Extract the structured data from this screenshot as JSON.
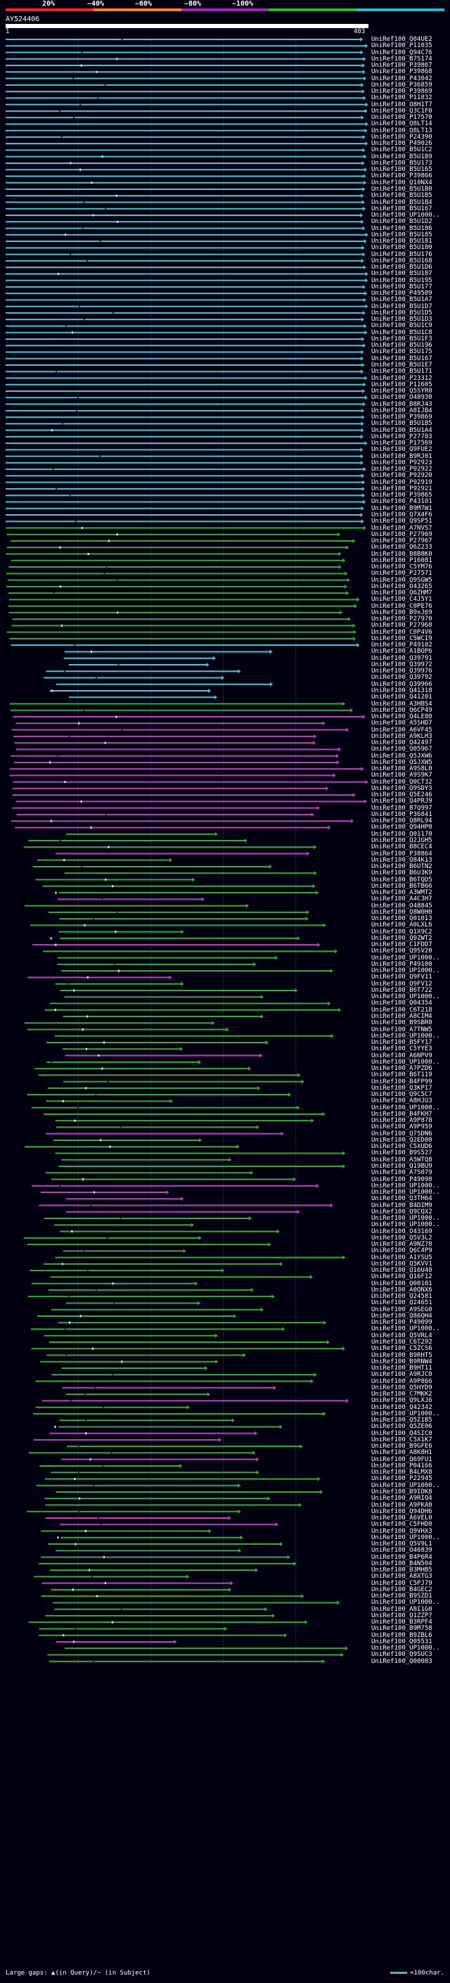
{
  "scale_labels": [
    "20%",
    "~40%",
    "~60%",
    "~80%",
    "~100%"
  ],
  "scale_colors": [
    "#ff2020",
    "#ff8020",
    "#b020c0",
    "#20c020",
    "#20c0d0"
  ],
  "query": {
    "name": "AY524406",
    "start": "1",
    "end": "483"
  },
  "legend": {
    "left": "Large gaps: ▲(in Query)/~ (in Subject)",
    "right": "=100char."
  },
  "colors": {
    "cyan": "#40c8d8",
    "green": "#30b030",
    "magenta": "#c040c0",
    "gap": "#404040"
  },
  "hits": [
    {
      "label": "UniRef100_Q04UE2",
      "color": "cyan"
    },
    {
      "label": "UniRef100_P11035",
      "color": "cyan"
    },
    {
      "label": "UniRef100_Q94C76",
      "color": "cyan"
    },
    {
      "label": "UniRef100_B7S174",
      "color": "cyan"
    },
    {
      "label": "UniRef100_P39867",
      "color": "cyan"
    },
    {
      "label": "UniRef100_P39868",
      "color": "cyan"
    },
    {
      "label": "UniRef100_P43042",
      "color": "cyan"
    },
    {
      "label": "UniRef100_P36859",
      "color": "cyan"
    },
    {
      "label": "UniRef100_P39869",
      "color": "cyan"
    },
    {
      "label": "UniRef100_P11832",
      "color": "cyan"
    },
    {
      "label": "UniRef100_Q8H1T7",
      "color": "cyan"
    },
    {
      "label": "UniRef100_Q3C1F0",
      "color": "cyan"
    },
    {
      "label": "UniRef100_P17570",
      "color": "cyan"
    },
    {
      "label": "UniRef100_Q8LT14",
      "color": "cyan"
    },
    {
      "label": "UniRef100_Q8LT13",
      "color": "cyan"
    },
    {
      "label": "UniRef100_P24390",
      "color": "cyan"
    },
    {
      "label": "UniRef100_P49026",
      "color": "cyan"
    },
    {
      "label": "UniRef100_B5U1C2",
      "color": "cyan"
    },
    {
      "label": "UniRef100_B5U1B9",
      "color": "cyan"
    },
    {
      "label": "UniRef100_B5U173",
      "color": "cyan"
    },
    {
      "label": "UniRef100_B5U165",
      "color": "cyan"
    },
    {
      "label": "UniRef100_P39866",
      "color": "cyan"
    },
    {
      "label": "UniRef100_Q10NX4",
      "color": "cyan"
    },
    {
      "label": "UniRef100_B5U1B0",
      "color": "cyan"
    },
    {
      "label": "UniRef100_B5U1B5",
      "color": "cyan"
    },
    {
      "label": "UniRef100_B5U1B4",
      "color": "cyan"
    },
    {
      "label": "UniRef100_B5U167",
      "color": "cyan"
    },
    {
      "label": "UniRef100_UP1000..",
      "color": "cyan"
    },
    {
      "label": "UniRef100_B5U1D2",
      "color": "cyan"
    },
    {
      "label": "UniRef100_B5U186",
      "color": "cyan"
    },
    {
      "label": "UniRef100_B5U185",
      "color": "cyan"
    },
    {
      "label": "UniRef100_B5U181",
      "color": "cyan"
    },
    {
      "label": "UniRef100_B5U180",
      "color": "cyan"
    },
    {
      "label": "UniRef100_B5U176",
      "color": "cyan"
    },
    {
      "label": "UniRef100_B5U168",
      "color": "cyan"
    },
    {
      "label": "UniRef100_B5U1D6",
      "color": "cyan"
    },
    {
      "label": "UniRef100_B5U187",
      "color": "cyan"
    },
    {
      "label": "UniRef100_B5U195",
      "color": "cyan"
    },
    {
      "label": "UniRef100_B5U177",
      "color": "cyan"
    },
    {
      "label": "UniRef100_P49509",
      "color": "cyan"
    },
    {
      "label": "UniRef100_B5U1A7",
      "color": "cyan"
    },
    {
      "label": "UniRef100_B5U1D7",
      "color": "cyan"
    },
    {
      "label": "UniRef100_B5U1D5",
      "color": "cyan"
    },
    {
      "label": "UniRef100_B5U1D3",
      "color": "cyan"
    },
    {
      "label": "UniRef100_B5U1C9",
      "color": "cyan"
    },
    {
      "label": "UniRef100_B5U1C8",
      "color": "cyan"
    },
    {
      "label": "UniRef100_B5U1F3",
      "color": "cyan"
    },
    {
      "label": "UniRef100_B5U196",
      "color": "cyan"
    },
    {
      "label": "UniRef100_B5U175",
      "color": "cyan"
    },
    {
      "label": "UniRef100_B5U167",
      "color": "cyan"
    },
    {
      "label": "UniRef100_B5U1E7",
      "color": "cyan"
    },
    {
      "label": "UniRef100_B5U171",
      "color": "cyan"
    },
    {
      "label": "UniRef100_P23312",
      "color": "cyan"
    },
    {
      "label": "UniRef100_P11605",
      "color": "cyan"
    },
    {
      "label": "UniRef100_Q5SYR0",
      "color": "cyan"
    },
    {
      "label": "UniRef100_O48930",
      "color": "cyan"
    },
    {
      "label": "UniRef100_B8RJ43",
      "color": "cyan"
    },
    {
      "label": "UniRef100_A8IJB4",
      "color": "cyan"
    },
    {
      "label": "UniRef100_P39869",
      "color": "cyan"
    },
    {
      "label": "UniRef100_B5U1B5",
      "color": "cyan"
    },
    {
      "label": "UniRef100_B5U1A4",
      "color": "cyan"
    },
    {
      "label": "UniRef100_P27783",
      "color": "cyan"
    },
    {
      "label": "UniRef100_P17569",
      "color": "cyan"
    },
    {
      "label": "UniRef100_Q9FUE2",
      "color": "cyan"
    },
    {
      "label": "UniRef100_B9RJ01",
      "color": "cyan"
    },
    {
      "label": "UniRef100_P92923",
      "color": "cyan"
    },
    {
      "label": "UniRef100_P92922",
      "color": "cyan"
    },
    {
      "label": "UniRef100_P92920",
      "color": "cyan"
    },
    {
      "label": "UniRef100_P92919",
      "color": "cyan"
    },
    {
      "label": "UniRef100_P92921",
      "color": "cyan"
    },
    {
      "label": "UniRef100_P39865",
      "color": "cyan"
    },
    {
      "label": "UniRef100_P43101",
      "color": "cyan"
    },
    {
      "label": "UniRef100_B9M7W1",
      "color": "cyan"
    },
    {
      "label": "UniRef100_Q7X4F6",
      "color": "cyan"
    },
    {
      "label": "UniRef100_Q9SP51",
      "color": "cyan"
    },
    {
      "label": "UniRef100_A7NVS7",
      "color": "green"
    },
    {
      "label": "UniRef100_P27969",
      "color": "green"
    },
    {
      "label": "UniRef100_P27967",
      "color": "green"
    },
    {
      "label": "UniRef100_Q6Z233",
      "color": "green"
    },
    {
      "label": "UniRef100_B8B8K0",
      "color": "green"
    },
    {
      "label": "UniRef100_P16081",
      "color": "green"
    },
    {
      "label": "UniRef100_C5YM76",
      "color": "green"
    },
    {
      "label": "UniRef100_P27571",
      "color": "green"
    },
    {
      "label": "UniRef100_Q9SGW5",
      "color": "green"
    },
    {
      "label": "UniRef100_O43265",
      "color": "green"
    },
    {
      "label": "UniRef100_Q6ZHM7",
      "color": "green"
    },
    {
      "label": "UniRef100_C4J5Y1",
      "color": "green"
    },
    {
      "label": "UniRef100_C0PE76",
      "color": "green"
    },
    {
      "label": "UniRef100_B9xJ69",
      "color": "green"
    },
    {
      "label": "UniRef100_P27970",
      "color": "green"
    },
    {
      "label": "UniRef100_P27968",
      "color": "green"
    },
    {
      "label": "UniRef100_C0P4V6",
      "color": "green"
    },
    {
      "label": "UniRef100_C5WCI9",
      "color": "green"
    },
    {
      "label": "UniRef100_P49102",
      "color": "cyan"
    },
    {
      "label": "UniRef100_A1BOP6",
      "color": "cyan"
    },
    {
      "label": "UniRef100_Q39791",
      "color": "cyan"
    },
    {
      "label": "UniRef100_Q39972",
      "color": "cyan"
    },
    {
      "label": "UniRef100_Q39976",
      "color": "cyan"
    },
    {
      "label": "UniRef100_Q39792",
      "color": "cyan"
    },
    {
      "label": "UniRef100_Q39966",
      "color": "cyan"
    },
    {
      "label": "UniRef100_Q41318",
      "color": "cyan"
    },
    {
      "label": "UniRef100_Q41201",
      "color": "cyan"
    },
    {
      "label": "UniRef100_A3HBS4",
      "color": "green"
    },
    {
      "label": "UniRef100_Q6CP49",
      "color": "green"
    },
    {
      "label": "UniRef100_Q4LE80",
      "color": "magenta"
    },
    {
      "label": "UniRef100_A5SHD7",
      "color": "magenta"
    },
    {
      "label": "UniRef100_A6VF45",
      "color": "magenta"
    },
    {
      "label": "UniRef100_A9KLH3",
      "color": "magenta"
    },
    {
      "label": "UniRef100_Q42497",
      "color": "magenta"
    },
    {
      "label": "UniRef100_Q05967",
      "color": "magenta"
    },
    {
      "label": "UniRef100_Q5JXW6",
      "color": "magenta"
    },
    {
      "label": "UniRef100_Q5JXW5",
      "color": "magenta"
    },
    {
      "label": "UniRef100_A9S8L0",
      "color": "magenta"
    },
    {
      "label": "UniRef100_A9S9K7",
      "color": "magenta"
    },
    {
      "label": "UniRef100_Q0CT32",
      "color": "magenta"
    },
    {
      "label": "UniRef100_Q9SDY3",
      "color": "magenta"
    },
    {
      "label": "UniRef100_Q5E246",
      "color": "magenta"
    },
    {
      "label": "UniRef100_Q4PRJ9",
      "color": "magenta"
    },
    {
      "label": "UniRef100_B7Q997",
      "color": "magenta"
    },
    {
      "label": "UniRef100_P36841",
      "color": "magenta"
    },
    {
      "label": "UniRef100_Q8RL94",
      "color": "magenta"
    },
    {
      "label": "UniRef100_Q94HP0",
      "color": "magenta"
    },
    {
      "label": "UniRef100_Q01170",
      "color": "green"
    },
    {
      "label": "UniRef100_Q2JGH5",
      "color": "green"
    },
    {
      "label": "UniRef100_B8CEC4",
      "color": "green"
    },
    {
      "label": "UniRef100_P38864",
      "color": "magenta"
    },
    {
      "label": "UniRef100_Q84K13",
      "color": "green"
    },
    {
      "label": "UniRef100_B6UTN2",
      "color": "green"
    },
    {
      "label": "UniRef100_B6U3K9",
      "color": "green"
    },
    {
      "label": "UniRef100_B6TQD5",
      "color": "green"
    },
    {
      "label": "UniRef100_B6TB66",
      "color": "green"
    },
    {
      "label": "UniRef100_A3WMT2",
      "color": "green"
    },
    {
      "label": "UniRef100_A4C3H7",
      "color": "magenta"
    },
    {
      "label": "UniRef100_O48845",
      "color": "green"
    },
    {
      "label": "UniRef100_Q8W0H0",
      "color": "green"
    },
    {
      "label": "UniRef100_Q01013",
      "color": "green"
    },
    {
      "label": "UniRef100_A0LXL6",
      "color": "green"
    },
    {
      "label": "UniRef100_Q1X9C2",
      "color": "green"
    },
    {
      "label": "UniRef100_Q9ZWT2",
      "color": "green"
    },
    {
      "label": "UniRef100_C1FDD7",
      "color": "magenta"
    },
    {
      "label": "UniRef100_Q9SV20",
      "color": "green"
    },
    {
      "label": "UniRef100_UP1000..",
      "color": "green"
    },
    {
      "label": "UniRef100_P49100",
      "color": "green"
    },
    {
      "label": "UniRef100_UP1000..",
      "color": "green"
    },
    {
      "label": "UniRef100_Q9FV11",
      "color": "magenta"
    },
    {
      "label": "UniRef100_Q9FV12",
      "color": "green"
    },
    {
      "label": "UniRef100_B6T722",
      "color": "green"
    },
    {
      "label": "UniRef100_UP1000..",
      "color": "green"
    },
    {
      "label": "UniRef100_Q04354",
      "color": "green"
    },
    {
      "label": "UniRef100_C6T218",
      "color": "green"
    },
    {
      "label": "UniRef100_A8CIM4",
      "color": "green"
    },
    {
      "label": "UniRef100_B9SBR0",
      "color": "green"
    },
    {
      "label": "UniRef100_A7TNW5",
      "color": "green"
    },
    {
      "label": "UniRef100_UP1000..",
      "color": "green"
    },
    {
      "label": "UniRef100_B5FY17",
      "color": "green"
    },
    {
      "label": "UniRef100_C5YYE3",
      "color": "green"
    },
    {
      "label": "UniRef100_A6NPV9",
      "color": "magenta"
    },
    {
      "label": "UniRef100_UP1000..",
      "color": "green"
    },
    {
      "label": "UniRef100_A7PZD6",
      "color": "green"
    },
    {
      "label": "UniRef100_B6T119",
      "color": "green"
    },
    {
      "label": "UniRef100_B4FP99",
      "color": "green"
    },
    {
      "label": "UniRef100_Q3KP17",
      "color": "green"
    },
    {
      "label": "UniRef100_Q9C5C7",
      "color": "green"
    },
    {
      "label": "UniRef100_A8HJU3",
      "color": "green"
    },
    {
      "label": "UniRef100_UP1000..",
      "color": "green"
    },
    {
      "label": "UniRef100_B4FKH7",
      "color": "green"
    },
    {
      "label": "UniRef100_A9P878",
      "color": "green"
    },
    {
      "label": "UniRef100_A9P959",
      "color": "green"
    },
    {
      "label": "UniRef100_Q75DN6",
      "color": "magenta"
    },
    {
      "label": "UniRef100_Q2ED80",
      "color": "green"
    },
    {
      "label": "UniRef100_C5XUD6",
      "color": "green"
    },
    {
      "label": "UniRef100_B9S527",
      "color": "green"
    },
    {
      "label": "UniRef100_A5WTQ8",
      "color": "green"
    },
    {
      "label": "UniRef100_Q19BU9",
      "color": "green"
    },
    {
      "label": "UniRef100_A7S079",
      "color": "green"
    },
    {
      "label": "UniRef100_P49098",
      "color": "green"
    },
    {
      "label": "UniRef100_UP1000..",
      "color": "magenta"
    },
    {
      "label": "UniRef100_UP1000..",
      "color": "magenta"
    },
    {
      "label": "UniRef100_Q3TH64",
      "color": "magenta"
    },
    {
      "label": "UniRef100_B4DIM9",
      "color": "magenta"
    },
    {
      "label": "UniRef100_Q9CQX2",
      "color": "magenta"
    },
    {
      "label": "UniRef100_UP1000..",
      "color": "green"
    },
    {
      "label": "UniRef100_UP1000..",
      "color": "green"
    },
    {
      "label": "UniRef100_O43169",
      "color": "green"
    },
    {
      "label": "UniRef100_Q5V3L2",
      "color": "green"
    },
    {
      "label": "UniRef100_A9NZ78",
      "color": "green"
    },
    {
      "label": "UniRef100_Q6C4P9",
      "color": "green"
    },
    {
      "label": "UniRef100_A1YSU5",
      "color": "green"
    },
    {
      "label": "UniRef100_Q5KVV1",
      "color": "green"
    },
    {
      "label": "UniRef100_Q16U40",
      "color": "green"
    },
    {
      "label": "UniRef100_Q16F12",
      "color": "green"
    },
    {
      "label": "UniRef100_Q00101",
      "color": "green"
    },
    {
      "label": "UniRef100_A0QNX6",
      "color": "green"
    },
    {
      "label": "UniRef100_Q24581",
      "color": "green"
    },
    {
      "label": "UniRef100_Q24651",
      "color": "green"
    },
    {
      "label": "UniRef100_A9SEG0",
      "color": "green"
    },
    {
      "label": "UniRef100_Q86QH4",
      "color": "green"
    },
    {
      "label": "UniRef100_P49099",
      "color": "green"
    },
    {
      "label": "UniRef100_UP1000..",
      "color": "green"
    },
    {
      "label": "UniRef100_Q5VRL4",
      "color": "green"
    },
    {
      "label": "UniRef100_C6T292",
      "color": "green"
    },
    {
      "label": "UniRef100_C5ZCS6",
      "color": "green"
    },
    {
      "label": "UniRef100_B9RHT5",
      "color": "green"
    },
    {
      "label": "UniRef100_B9RNW4",
      "color": "green"
    },
    {
      "label": "UniRef100_B9HT11",
      "color": "green"
    },
    {
      "label": "UniRef100_A9RJC0",
      "color": "green"
    },
    {
      "label": "UniRef100_A9P866",
      "color": "green"
    },
    {
      "label": "UniRef100_Q5HYD9",
      "color": "magenta"
    },
    {
      "label": "UniRef100_C7MKK2",
      "color": "green"
    },
    {
      "label": "UniRef100_Q9LXJ6",
      "color": "magenta"
    },
    {
      "label": "UniRef100_Q42342",
      "color": "green"
    },
    {
      "label": "UniRef100_UP1000..",
      "color": "green"
    },
    {
      "label": "UniRef100_Q5Z1B5",
      "color": "green"
    },
    {
      "label": "UniRef100_Q5ZE06",
      "color": "green"
    },
    {
      "label": "UniRef100_Q4SIC0",
      "color": "magenta"
    },
    {
      "label": "UniRef100_C5X1K7",
      "color": "magenta"
    },
    {
      "label": "UniRef100_B9GFE6",
      "color": "green"
    },
    {
      "label": "UniRef100_A8K8H1",
      "color": "green"
    },
    {
      "label": "UniRef100_Q69FU1",
      "color": "magenta"
    },
    {
      "label": "UniRef100_P04166",
      "color": "green"
    },
    {
      "label": "UniRef100_B4LMX8",
      "color": "green"
    },
    {
      "label": "UniRef100_P22945",
      "color": "green"
    },
    {
      "label": "UniRef100_UP1000..",
      "color": "green"
    },
    {
      "label": "UniRef100_B9IDK8",
      "color": "green"
    },
    {
      "label": "UniRef100_A9RIQ4",
      "color": "green"
    },
    {
      "label": "UniRef100_A9PKA0",
      "color": "green"
    },
    {
      "label": "UniRef100_Q94DH6",
      "color": "green"
    },
    {
      "label": "UniRef100_A6VEL0",
      "color": "magenta"
    },
    {
      "label": "UniRef100_C5FHD0",
      "color": "magenta"
    },
    {
      "label": "UniRef100_Q9VHX3",
      "color": "green"
    },
    {
      "label": "UniRef100_UP1000..",
      "color": "green"
    },
    {
      "label": "UniRef100_Q5V9L1",
      "color": "green"
    },
    {
      "label": "UniRef100_O46839",
      "color": "green"
    },
    {
      "label": "UniRef100_B4P6R4",
      "color": "green"
    },
    {
      "label": "UniRef100_B4N504",
      "color": "green"
    },
    {
      "label": "UniRef100_B3MHB5",
      "color": "green"
    },
    {
      "label": "UniRef100_A8XTG3",
      "color": "green"
    },
    {
      "label": "UniRef100_C5PJ79",
      "color": "magenta"
    },
    {
      "label": "UniRef100_B4GEC2",
      "color": "green"
    },
    {
      "label": "UniRef100_B9SZD1",
      "color": "green"
    },
    {
      "label": "UniRef100_UP1000..",
      "color": "green"
    },
    {
      "label": "UniRef100_A8I1G0",
      "color": "green"
    },
    {
      "label": "UniRef100_Q1ZZP7",
      "color": "green"
    },
    {
      "label": "UniRef100_B3RPF4",
      "color": "green"
    },
    {
      "label": "UniRef100_B9M758",
      "color": "green"
    },
    {
      "label": "UniRef100_B9ZBL6",
      "color": "green"
    },
    {
      "label": "UniRef100_Q05531",
      "color": "magenta"
    },
    {
      "label": "UniRef100_UP1000..",
      "color": "green"
    },
    {
      "label": "UniRef100_Q9SUC3",
      "color": "green"
    },
    {
      "label": "UniRef100_Q00083",
      "color": "green"
    }
  ]
}
